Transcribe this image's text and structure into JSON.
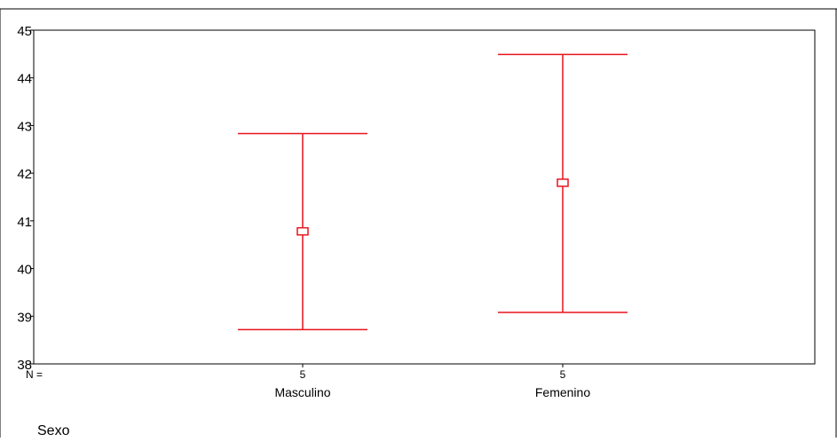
{
  "chart_data": {
    "type": "errorbar",
    "categories": [
      "Masculino",
      "Femenino"
    ],
    "n_label": "N =",
    "n_values": [
      "5",
      "5"
    ],
    "y_ticks": [
      "45",
      "44",
      "43",
      "42",
      "41",
      "40",
      "39",
      "38"
    ],
    "ylim": [
      38,
      45
    ],
    "series": [
      {
        "points": [
          {
            "category": "Masculino",
            "mean": 40.78,
            "lower": 38.72,
            "upper": 42.83
          },
          {
            "category": "Femenino",
            "mean": 41.8,
            "lower": 39.08,
            "upper": 44.49
          }
        ]
      }
    ],
    "xlabel": "Sexo",
    "ylabel": "",
    "title": "",
    "grid": false,
    "colors": {
      "series": "#e8141e",
      "axis": "#000000"
    }
  }
}
